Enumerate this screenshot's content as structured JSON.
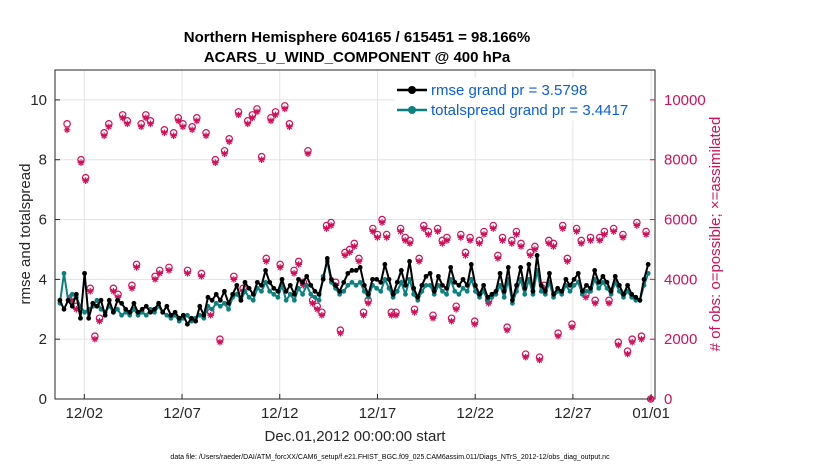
{
  "chart_data": {
    "type": "line",
    "title_line1": "Northern Hemisphere 604165 / 615451 = 98.166%",
    "title_line2": "ACARS_U_WIND_COMPONENT @ 400 hPa",
    "xlabel": "Dec.01,2012 00:00:00 start",
    "ylabel_left": "rmse and totalspread",
    "ylabel_right": "# of obs: o=possible; ×=assimilated",
    "footnote": "data file: /Users/raeder/DAI/ATM_forcXX/CAM6_setup/f.e21.FHIST_BGC.f09_025.CAM6assim.011/Diags_NTrS_2012-12/obs_diag_output.nc",
    "x_range": [
      0.5,
      31.2
    ],
    "x_ticks": [
      {
        "value": 2,
        "label": "12/02"
      },
      {
        "value": 7,
        "label": "12/07"
      },
      {
        "value": 12,
        "label": "12/12"
      },
      {
        "value": 17,
        "label": "12/17"
      },
      {
        "value": 22,
        "label": "12/22"
      },
      {
        "value": 27,
        "label": "12/27"
      },
      {
        "value": 31,
        "label": "01/01"
      }
    ],
    "y_left_range": [
      0,
      11
    ],
    "y_left_ticks": [
      0,
      2,
      4,
      6,
      8,
      10
    ],
    "y_right_range": [
      0,
      11000
    ],
    "y_right_ticks": [
      0,
      2000,
      4000,
      6000,
      8000,
      10000
    ],
    "series": [
      {
        "name": "rmse",
        "legend": "rmse grand pr = 3.5798",
        "color": "#000000",
        "values": [
          3.3,
          3.0,
          3.3,
          3.1,
          3.5,
          2.7,
          4.2,
          2.7,
          3.2,
          3.1,
          3.3,
          2.8,
          3.3,
          2.9,
          3.3,
          3.2,
          3.0,
          2.9,
          3.2,
          2.9,
          3.0,
          3.1,
          2.9,
          3.0,
          3.2,
          2.9,
          3.1,
          2.8,
          2.9,
          2.7,
          2.8,
          2.5,
          2.7,
          2.6,
          3.1,
          2.8,
          3.4,
          3.3,
          3.5,
          3.3,
          3.6,
          3.2,
          3.5,
          3.8,
          3.3,
          3.9,
          3.7,
          3.5,
          3.9,
          3.8,
          4.3,
          3.9,
          3.7,
          3.6,
          4.0,
          3.6,
          3.8,
          3.5,
          4.0,
          3.9,
          4.1,
          3.8,
          3.6,
          3.5,
          4.0,
          4.7,
          4.0,
          3.8,
          3.6,
          3.9,
          4.2,
          4.3,
          4.3,
          4.4,
          3.8,
          3.5,
          4.0,
          4.0,
          3.9,
          4.5,
          4.0,
          3.5,
          3.9,
          4.3,
          3.8,
          4.6,
          3.7,
          3.4,
          3.8,
          4.1,
          4.2,
          3.6,
          4.1,
          3.8,
          3.7,
          4.4,
          3.9,
          3.8,
          4.0,
          3.8,
          4.5,
          3.8,
          3.5,
          3.8,
          3.4,
          3.5,
          3.6,
          4.2,
          3.6,
          4.4,
          3.3,
          3.8,
          4.4,
          3.7,
          4.5,
          3.6,
          4.8,
          3.8,
          3.6,
          4.2,
          3.5,
          3.7,
          3.6,
          4.0,
          3.8,
          4.0,
          4.2,
          3.6,
          3.8,
          3.7,
          4.3,
          3.9,
          4.1,
          3.9,
          3.6,
          4.1,
          3.8,
          3.5,
          3.8,
          3.5,
          3.4,
          3.3,
          4.0,
          4.5
        ]
      },
      {
        "name": "totalspread",
        "legend": "totalspread grand pr = 3.4417",
        "color": "#0e8080",
        "values": [
          3.2,
          4.2,
          3.3,
          3.5,
          3.4,
          3.1,
          2.9,
          3.0,
          3.1,
          3.3,
          3.0,
          2.9,
          3.1,
          2.9,
          3.0,
          2.8,
          2.9,
          2.8,
          3.0,
          2.8,
          2.9,
          2.8,
          3.0,
          2.9,
          3.1,
          2.9,
          2.8,
          2.7,
          2.8,
          2.6,
          2.7,
          2.8,
          2.6,
          2.7,
          2.8,
          2.7,
          3.1,
          3.0,
          3.2,
          3.1,
          3.2,
          3.0,
          3.4,
          3.5,
          3.3,
          3.6,
          3.4,
          3.3,
          3.7,
          3.6,
          3.9,
          3.6,
          3.5,
          3.4,
          3.8,
          3.3,
          3.5,
          3.3,
          3.7,
          3.5,
          3.8,
          3.5,
          3.4,
          3.3,
          4.1,
          4.6,
          3.9,
          3.7,
          3.5,
          3.6,
          3.8,
          3.9,
          3.8,
          3.9,
          3.6,
          3.4,
          3.8,
          3.7,
          3.6,
          4.0,
          3.7,
          3.4,
          3.6,
          3.9,
          3.5,
          4.0,
          3.5,
          3.3,
          3.6,
          3.8,
          3.8,
          3.5,
          3.8,
          3.6,
          3.5,
          4.0,
          3.6,
          3.5,
          3.7,
          3.6,
          4.0,
          3.6,
          3.4,
          3.6,
          3.3,
          3.4,
          3.5,
          3.8,
          3.4,
          4.0,
          3.2,
          3.6,
          4.0,
          3.5,
          4.0,
          3.5,
          4.3,
          3.6,
          3.5,
          3.9,
          3.4,
          3.6,
          3.5,
          3.8,
          3.6,
          3.8,
          3.9,
          3.5,
          3.6,
          3.6,
          4.0,
          3.7,
          3.9,
          3.7,
          3.5,
          3.9,
          3.6,
          3.4,
          3.6,
          3.4,
          3.3,
          3.3,
          3.8,
          4.2
        ]
      }
    ],
    "obs_color": "#d0105a",
    "obs_possible": [
      9200,
      3400,
      3100,
      8000,
      7400,
      3700,
      2100,
      2700,
      8900,
      9200,
      3700,
      3500,
      9500,
      9300,
      3800,
      4500,
      9200,
      9500,
      9300,
      4100,
      4300,
      9000,
      4400,
      8900,
      9400,
      9200,
      4300,
      9100,
      9400,
      4200,
      8900,
      2900,
      8000,
      2000,
      8300,
      8700,
      4100,
      9600,
      3700,
      9300,
      9500,
      9700,
      8100,
      4700,
      9400,
      9600,
      4500,
      9800,
      9200,
      4300,
      4600,
      3900,
      8300,
      3300,
      3100,
      2900,
      5800,
      5900,
      3900,
      2300,
      4900,
      5000,
      5200,
      4700,
      2900,
      3300,
      5700,
      5500,
      6000,
      5500,
      2900,
      2900,
      5700,
      5400,
      5300,
      3000,
      4700,
      5800,
      5600,
      2800,
      5700,
      5300,
      5400,
      2700,
      3100,
      5500,
      4900,
      5400,
      2600,
      5300,
      5600,
      3300,
      5800,
      4800,
      5400,
      2400,
      5300,
      5600,
      5200,
      1500,
      4900,
      5100,
      1400,
      3800,
      5300,
      5200,
      2200,
      5800,
      4700,
      2500,
      5700,
      5300,
      3500,
      5400,
      3300,
      5400,
      5600,
      3300,
      5700,
      1900,
      5500,
      1600,
      2000,
      5900,
      2100,
      5600,
      0
    ],
    "obs_assimilated": [
      9000,
      3300,
      3000,
      7900,
      7300,
      3600,
      2000,
      2600,
      8800,
      9100,
      3600,
      3400,
      9400,
      9200,
      3700,
      4400,
      9100,
      9400,
      9200,
      4000,
      4200,
      8900,
      4300,
      8800,
      9300,
      9100,
      4200,
      9000,
      9300,
      4100,
      8800,
      2800,
      7900,
      1900,
      8200,
      8600,
      4000,
      9500,
      3600,
      9200,
      9400,
      9600,
      8000,
      4600,
      9300,
      9500,
      4400,
      9700,
      9100,
      4200,
      4500,
      3800,
      8200,
      3200,
      3000,
      2800,
      5700,
      5800,
      3800,
      2200,
      4800,
      4900,
      5100,
      4600,
      2800,
      3200,
      5600,
      5400,
      5900,
      5400,
      2800,
      2800,
      5600,
      5300,
      5200,
      2900,
      4600,
      5700,
      5500,
      2700,
      5600,
      5200,
      5300,
      2600,
      3000,
      5400,
      4800,
      5300,
      2500,
      5200,
      5500,
      3200,
      5700,
      4700,
      5300,
      2300,
      5200,
      5500,
      5100,
      1400,
      4800,
      5000,
      1300,
      3700,
      5200,
      5100,
      2100,
      5700,
      4600,
      2400,
      5600,
      5200,
      3400,
      5300,
      3200,
      5300,
      5500,
      3200,
      5600,
      1800,
      5400,
      1500,
      1900,
      5800,
      2000,
      5500,
      0
    ]
  }
}
